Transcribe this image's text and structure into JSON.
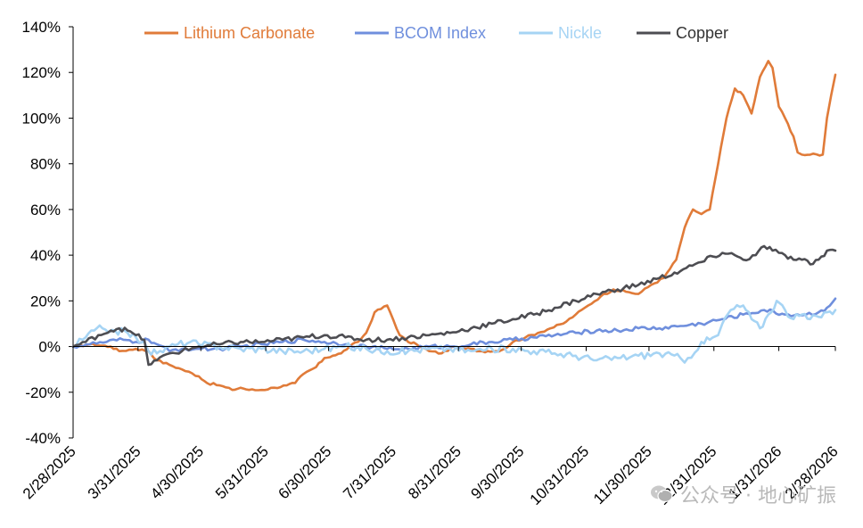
{
  "chart_data": {
    "type": "line",
    "title": "",
    "xlabel": "",
    "ylabel": "",
    "ylim": [
      -40,
      140
    ],
    "yticks": [
      -40,
      -20,
      0,
      20,
      40,
      60,
      80,
      100,
      120,
      140
    ],
    "ytick_labels": [
      "-40%",
      "-20%",
      "0%",
      "20%",
      "40%",
      "60%",
      "80%",
      "100%",
      "120%",
      "140%"
    ],
    "xlim": [
      0,
      364
    ],
    "xticks": [
      0,
      31,
      61,
      92,
      122,
      153,
      184,
      214,
      245,
      275,
      306,
      337,
      365
    ],
    "xtick_labels": [
      "2/28/2025",
      "3/31/2025",
      "4/30/2025",
      "5/31/2025",
      "6/30/2025",
      "7/31/2025",
      "8/31/2025",
      "9/30/2025",
      "10/31/2025",
      "11/30/2025",
      "12/31/2025",
      "1/31/2026",
      "2/28/2026"
    ],
    "legend_position": "top",
    "series": [
      {
        "name": "Lithium Carbonate",
        "color": "#E07B39",
        "x": [
          0,
          8,
          18,
          22,
          30,
          36,
          40,
          46,
          52,
          60,
          64,
          70,
          76,
          80,
          84,
          90,
          96,
          102,
          106,
          110,
          116,
          120,
          124,
          128,
          132,
          136,
          140,
          144,
          150,
          156,
          160,
          164,
          170,
          176,
          182,
          186,
          190,
          194,
          198,
          202,
          206,
          210,
          216,
          222,
          228,
          234,
          240,
          246,
          252,
          258,
          264,
          270,
          276,
          282,
          288,
          292,
          296,
          300,
          304,
          308,
          312,
          316,
          320,
          324,
          328,
          332,
          334,
          337,
          340,
          344,
          346,
          348,
          352,
          358,
          360,
          362,
          364
        ],
        "values": [
          0,
          1,
          0,
          -2,
          -1,
          -2,
          -6,
          -8,
          -10,
          -13,
          -16,
          -17,
          -19,
          -18,
          -19,
          -19,
          -18,
          -17,
          -16,
          -12,
          -9,
          -5,
          -4,
          -3,
          0,
          2,
          6,
          15,
          18,
          5,
          2,
          1,
          -2,
          -3,
          0,
          -1,
          -1,
          -2,
          -2,
          -2,
          -1,
          2,
          4,
          6,
          8,
          10,
          14,
          18,
          22,
          25,
          24,
          23,
          27,
          30,
          38,
          52,
          60,
          58,
          60,
          80,
          100,
          113,
          110,
          102,
          118,
          125,
          122,
          105,
          100,
          92,
          85,
          84,
          84,
          84,
          100,
          110,
          119
        ]
      },
      {
        "name": "BCOM Index",
        "color": "#6F8FDD",
        "x": [
          0,
          8,
          16,
          24,
          30,
          36,
          40,
          46,
          52,
          60,
          70,
          80,
          90,
          100,
          110,
          120,
          130,
          140,
          150,
          160,
          170,
          180,
          190,
          200,
          210,
          220,
          230,
          240,
          250,
          260,
          270,
          280,
          290,
          300,
          310,
          320,
          330,
          340,
          350,
          356,
          360,
          364
        ],
        "values": [
          0,
          1,
          2,
          3,
          2,
          3,
          1,
          -2,
          -1,
          -1,
          -1,
          0,
          1,
          2,
          3,
          2,
          1,
          0,
          -1,
          -1,
          0,
          0,
          1,
          2,
          3,
          4,
          5,
          6,
          7,
          7,
          8,
          8,
          9,
          10,
          12,
          14,
          16,
          14,
          14,
          15,
          17,
          21
        ]
      },
      {
        "name": "Nickle",
        "color": "#A6D4F4",
        "x": [
          0,
          6,
          10,
          14,
          20,
          26,
          30,
          34,
          36,
          40,
          46,
          50,
          56,
          60,
          70,
          80,
          90,
          100,
          110,
          120,
          130,
          140,
          150,
          160,
          170,
          180,
          190,
          200,
          210,
          220,
          230,
          240,
          250,
          260,
          270,
          280,
          290,
          292,
          300,
          304,
          308,
          310,
          314,
          320,
          324,
          328,
          332,
          336,
          340,
          344,
          348,
          352,
          356,
          360,
          364
        ],
        "values": [
          0,
          4,
          7,
          8,
          7,
          6,
          4,
          2,
          -2,
          -3,
          0,
          1,
          2,
          1,
          0,
          -1,
          -1,
          -2,
          -2,
          -1,
          0,
          -1,
          -2,
          -2,
          -1,
          -1,
          -2,
          -1,
          -1,
          -2,
          -3,
          -4,
          -6,
          -5,
          -4,
          -3,
          -5,
          -7,
          2,
          3,
          5,
          10,
          16,
          18,
          12,
          8,
          14,
          20,
          16,
          12,
          14,
          12,
          13,
          15,
          16
        ]
      },
      {
        "name": "Copper",
        "color": "#4D4D52",
        "x": [
          0,
          6,
          12,
          18,
          22,
          26,
          30,
          34,
          36,
          40,
          46,
          52,
          60,
          70,
          80,
          90,
          100,
          110,
          120,
          130,
          140,
          150,
          160,
          170,
          180,
          190,
          200,
          210,
          220,
          230,
          240,
          250,
          260,
          270,
          280,
          290,
          300,
          310,
          316,
          320,
          326,
          330,
          334,
          337,
          340,
          344,
          348,
          352,
          356,
          360,
          364
        ],
        "values": [
          0,
          2,
          5,
          7,
          8,
          7,
          5,
          3,
          -8,
          -6,
          -3,
          -2,
          0,
          1,
          2,
          2,
          3,
          4,
          5,
          4,
          3,
          3,
          4,
          5,
          6,
          8,
          10,
          12,
          14,
          17,
          20,
          23,
          25,
          27,
          30,
          33,
          37,
          41,
          40,
          38,
          40,
          44,
          42,
          41,
          40,
          38,
          38,
          36,
          38,
          42,
          42
        ]
      }
    ]
  },
  "watermark": {
    "text": "公众号 · 地心矿振",
    "icon": "wechat-icon"
  }
}
